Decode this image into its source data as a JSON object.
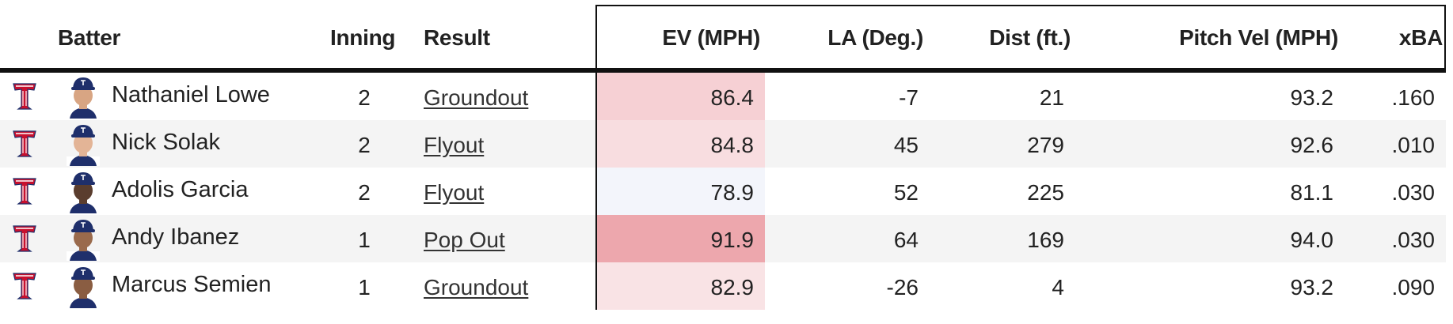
{
  "headers": {
    "batter": "Batter",
    "inning": "Inning",
    "result": "Result",
    "ev": "EV (MPH)",
    "la": "LA (Deg.)",
    "dist": "Dist (ft.)",
    "pitch_vel": "Pitch Vel (MPH)",
    "xba": "xBA"
  },
  "colors": {
    "team_red": "#c8102e",
    "team_navy": "#1f2f6b",
    "header_rule": "#111111",
    "row_alt": "#f4f4f4"
  },
  "rows": [
    {
      "team_logo": "texas-rangers-t-logo",
      "batter": "Nathaniel Lowe",
      "skin": "#d8a583",
      "inning": "2",
      "result": "Groundout",
      "ev": "86.4",
      "ev_color": "#f6d0d4",
      "la": "-7",
      "dist": "21",
      "pitch_vel": "93.2",
      "xba": ".160"
    },
    {
      "team_logo": "texas-rangers-t-logo",
      "batter": "Nick Solak",
      "skin": "#e3b496",
      "inning": "2",
      "result": "Flyout",
      "ev": "84.8",
      "ev_color": "#f8dde0",
      "la": "45",
      "dist": "279",
      "pitch_vel": "92.6",
      "xba": ".010"
    },
    {
      "team_logo": "texas-rangers-t-logo",
      "batter": "Adolis Garcia",
      "skin": "#5a3d2e",
      "inning": "2",
      "result": "Flyout",
      "ev": "78.9",
      "ev_color": "#f3f5fb",
      "la": "52",
      "dist": "225",
      "pitch_vel": "81.1",
      "xba": ".030"
    },
    {
      "team_logo": "texas-rangers-t-logo",
      "batter": "Andy Ibanez",
      "skin": "#9a6a4c",
      "inning": "1",
      "result": "Pop Out",
      "ev": "91.9",
      "ev_color": "#eda7ad",
      "la": "64",
      "dist": "169",
      "pitch_vel": "94.0",
      "xba": ".030"
    },
    {
      "team_logo": "texas-rangers-t-logo",
      "batter": "Marcus Semien",
      "skin": "#8a5d42",
      "inning": "1",
      "result": "Groundout",
      "ev": "82.9",
      "ev_color": "#f9e3e5",
      "la": "-26",
      "dist": "4",
      "pitch_vel": "93.2",
      "xba": ".090"
    }
  ]
}
